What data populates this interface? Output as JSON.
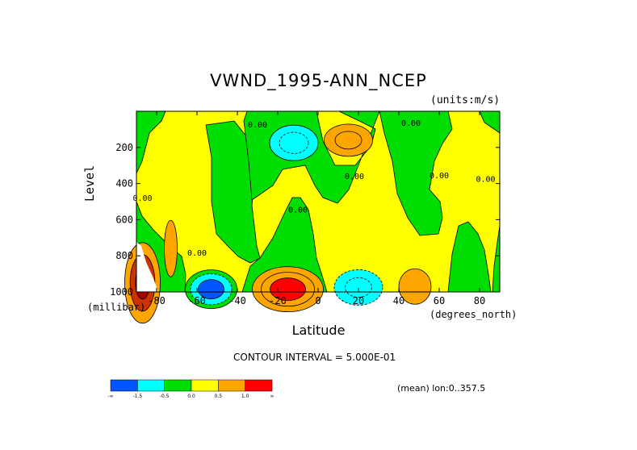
{
  "chart_data": {
    "type": "contour",
    "title": "VWND_1995-ANN_NCEP",
    "units": "(units:m/s)",
    "ylabel": "Level",
    "yunits": "(millibar)",
    "xlabel": "Latitude",
    "xunits": "(degrees_north)",
    "xlim": [
      -90,
      90
    ],
    "ylim": [
      1000,
      0
    ],
    "xticks": [
      -80,
      -60,
      -40,
      -20,
      0,
      20,
      40,
      60,
      80
    ],
    "yticks": [
      200,
      400,
      600,
      800,
      1000
    ],
    "contour_interval_text": "CONTOUR INTERVAL = 5.000E-01",
    "region_text": "(mean) lon:0..357.5",
    "contour_labels": [
      {
        "text": "0.00",
        "lat": -30,
        "level": 90
      },
      {
        "text": "0.00",
        "lat": 46,
        "level": 80
      },
      {
        "text": "0.00",
        "lat": 18,
        "level": 375
      },
      {
        "text": "0.00",
        "lat": -87,
        "level": 495
      },
      {
        "text": "0.00",
        "lat": -10,
        "level": 560
      },
      {
        "text": "0.00",
        "lat": -60,
        "level": 800
      },
      {
        "text": "0.00",
        "lat": 60,
        "level": 370
      },
      {
        "text": "0.00",
        "lat": 83,
        "level": 390
      }
    ],
    "colorbar": {
      "colors": [
        "#0055ff",
        "#00ffff",
        "#00dd00",
        "#ffff00",
        "#ffa500",
        "#ff0000"
      ],
      "labels": [
        "-∞",
        "-1.5",
        "-0.5",
        "0.0",
        "0.5",
        "1.0",
        "∞"
      ]
    },
    "features": [
      {
        "kind": "min",
        "lat": -12,
        "level": 175,
        "value": -1.0
      },
      {
        "kind": "max",
        "lat": 15,
        "level": 160,
        "value": 1.0
      },
      {
        "kind": "min",
        "lat": -53,
        "level": 985,
        "value": -2.0
      },
      {
        "kind": "max",
        "lat": -15,
        "level": 985,
        "value": 2.0
      },
      {
        "kind": "min",
        "lat": 20,
        "level": 975,
        "value": -1.0
      },
      {
        "kind": "max",
        "lat": 48,
        "level": 970,
        "value": 1.0
      },
      {
        "kind": "max",
        "lat": -87,
        "level": 950,
        "value": 2.5
      }
    ]
  }
}
